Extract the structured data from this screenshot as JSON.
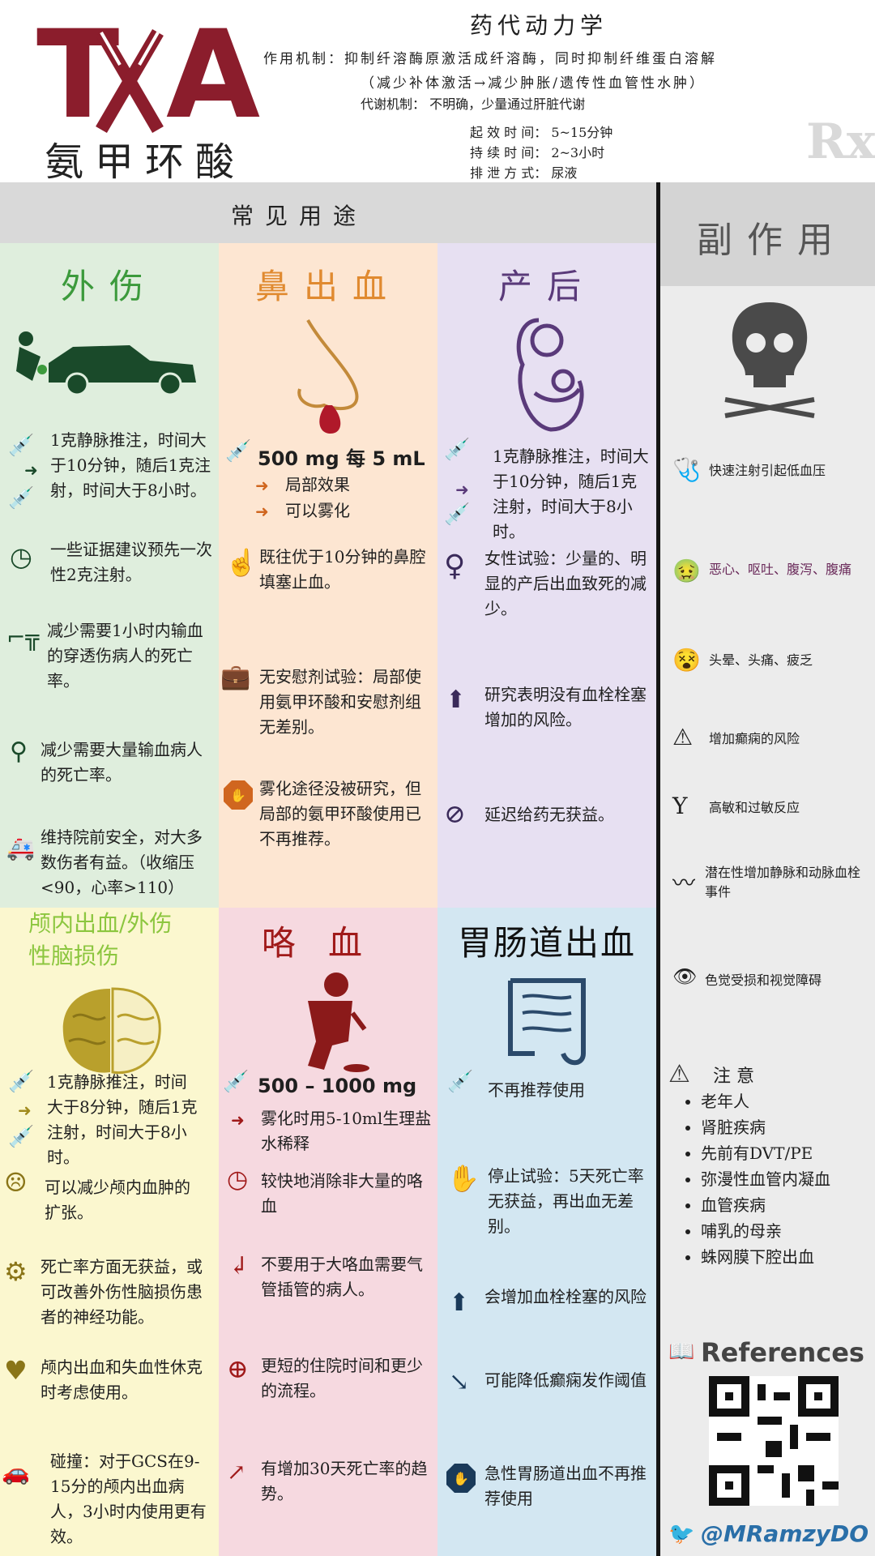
{
  "header": {
    "logo": {
      "t": "T",
      "x": "X",
      "a": "A",
      "name": "氨甲环酸"
    },
    "pk_title": "药代动力学",
    "mechanism": "作用机制：抑制纤溶酶原激活成纤溶酶，同时抑制纤维蛋白溶解",
    "mechanism_note": "（减少补体激活→减少肿胀/遗传性血管性水肿）",
    "metabolism": "代谢机制：  不明确，少量通过肝脏代谢",
    "onset": "起 效 时 间：   5~15分钟",
    "duration": "持 续 时 间：   2~3小时",
    "excretion": "排 泄 方 式：   尿液",
    "rx": "Rx"
  },
  "bands": {
    "common_uses": "常见用途",
    "side_effects": "副作用"
  },
  "colors": {
    "brand": "#8b1d2c",
    "trauma_bg": "#dfeedd",
    "epistaxis_bg": "#fde6d2",
    "postpartum_bg": "#e7e0f2",
    "tbi_bg": "#fbf7cf",
    "hemoptysis_bg": "#f6d9e0",
    "gi_bg": "#d3e7f2",
    "side_bg": "#ececec",
    "band_bg": "#d9d9d9"
  },
  "trauma": {
    "title": "外伤",
    "item1": "1克静脉推注，时间大于10分钟，随后1克注射，时间大于8小时。",
    "item2": "一些证据建议预先一次性2克注射。",
    "item3": "减少需要1小时内输血的穿透伤病人的死亡率。",
    "item4": "减少需要大量输血病人的死亡率。",
    "item5": "维持院前安全，对大多数伤者有益。（收缩压<90，心率>110）"
  },
  "epistaxis": {
    "title": "鼻出血",
    "dose": "500 mg 每 5 mL",
    "bullet1": "局部效果",
    "bullet2": "可以雾化",
    "item1": "既往优于10分钟的鼻腔填塞止血。",
    "item2": "无安慰剂试验：局部使用氨甲环酸和安慰剂组无差别。",
    "item3": "雾化途径没被研究，但局部的氨甲环酸使用已不再推荐。"
  },
  "postpartum": {
    "title": "产后",
    "item1": "1克静脉推注，时间大于10分钟，随后1克注射，时间大于8小时。",
    "item2": "女性试验：少量的、明显的产后出血致死的减少。",
    "item3": "研究表明没有血栓栓塞增加的风险。",
    "item4": "延迟给药无获益。"
  },
  "tbi": {
    "title": "颅内出血/外伤性脑损伤",
    "item1": "1克静脉推注，时间大于8分钟，随后1克注射，时间大于8小时。",
    "item2": "可以减少颅内血肿的扩张。",
    "item3": "死亡率方面无获益，或可改善外伤性脑损伤患者的神经功能。",
    "item4": "颅内出血和失血性休克时考虑使用。",
    "item5": "碰撞：对于GCS在9-15分的颅内出血病人，3小时内使用更有效。"
  },
  "hemoptysis": {
    "title": "咯血",
    "dose": "500 – 1000 mg",
    "bullet1": "雾化时用5-10ml生理盐水稀释",
    "item1": "较快地消除非大量的咯血",
    "item2": "不要用于大咯血需要气管插管的病人。",
    "item3": "更短的住院时间和更少的流程。",
    "item4": "有增加30天死亡率的趋势。"
  },
  "gi": {
    "title": "胃肠道出血",
    "item1": "不再推荐使用",
    "item2": "停止试验：5天死亡率无获益，再出血无差别。",
    "item3": "会增加血栓栓塞的风险",
    "item4": "可能降低癫痫发作阈值",
    "item5": "急性胃肠道出血不再推荐使用"
  },
  "side_effects": {
    "item1": "快速注射引起低血压",
    "item2": "恶心、呕吐、腹泻、腹痛",
    "item3": "头晕、头痛、疲乏",
    "item4": "增加癫痫的风险",
    "item5": "高敏和过敏反应",
    "item6": "潜在性增加静脉和动脉血栓事件",
    "item7": "色觉受损和视觉障碍"
  },
  "caution": {
    "title": "注 意",
    "items": [
      "老年人",
      "肾脏疾病",
      "先前有DVT/PE",
      "弥漫性血管内凝血",
      "血管疾病",
      "哺乳的母亲",
      "蛛网膜下腔出血"
    ]
  },
  "references": {
    "label": "References",
    "twitter": "@MRamzyDO"
  },
  "icons": {
    "syringe": "syringe-icon",
    "arrow": "arrow-right-icon",
    "clock": "clock-icon",
    "gun": "gun-icon",
    "iv": "iv-pole-icon",
    "ambulance": "ambulance-icon",
    "hand": "hand-icon",
    "briefcase": "briefcase-x-icon",
    "stop": "stop-icon",
    "female": "female-icon",
    "up": "arrow-up-icon",
    "no": "no-icon",
    "skull": "skull-icon",
    "brain": "brain-icon"
  }
}
